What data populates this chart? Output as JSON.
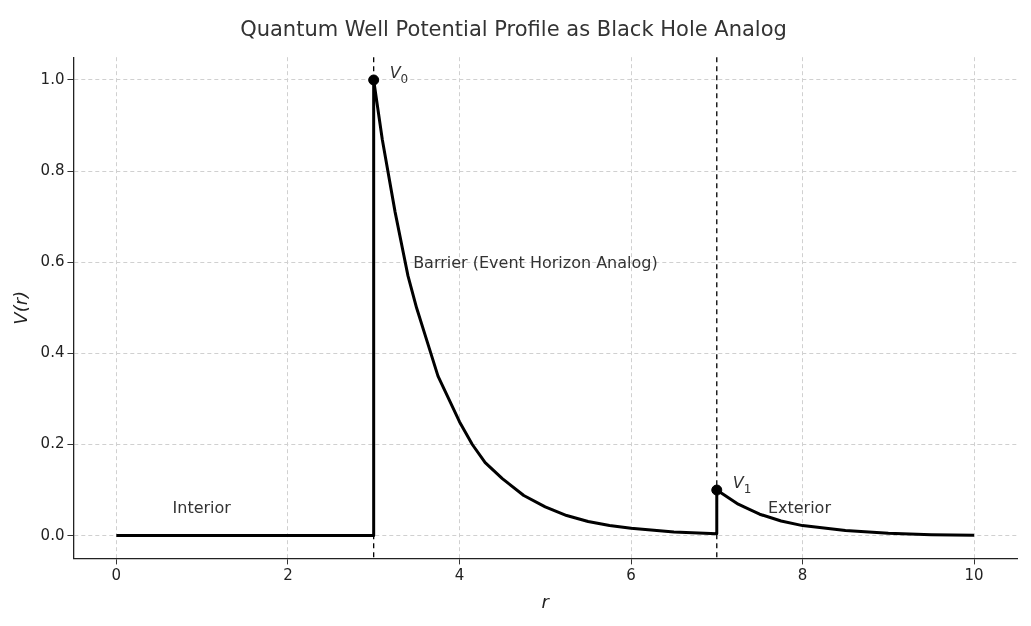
{
  "chart_data": {
    "type": "line",
    "title": "Quantum Well Potential Profile as Black Hole Analog",
    "xlabel": "r",
    "ylabel": "V(r)",
    "xlim": [
      -0.5,
      10.5
    ],
    "ylim": [
      -0.05,
      1.05
    ],
    "xticks": [
      0,
      2,
      4,
      6,
      8,
      10
    ],
    "yticks": [
      {
        "value": 0,
        "label": "0.0"
      },
      {
        "value": 0.2,
        "label": "0.2"
      },
      {
        "value": 0.4,
        "label": "0.4"
      },
      {
        "value": 0.6,
        "label": "0.6"
      },
      {
        "value": 0.8,
        "label": "0.8"
      },
      {
        "value": 1,
        "label": "1.0"
      }
    ],
    "grid": true,
    "legend": false,
    "series": [
      {
        "type": "line",
        "color": "#000000",
        "marker": "none",
        "x": [
          0,
          1,
          2,
          3,
          3,
          3.1,
          3.25,
          3.4,
          3.5,
          3.6,
          3.75,
          3.9,
          4,
          4.15,
          4.3,
          4.5,
          4.75,
          5,
          5.25,
          5.5,
          5.75,
          6,
          6.5,
          7,
          7,
          7.25,
          7.5,
          7.75,
          8,
          8.5,
          9,
          9.5,
          10
        ],
        "values": [
          0,
          0,
          0,
          0,
          1,
          0.87,
          0.71,
          0.57,
          0.5,
          0.44,
          0.35,
          0.29,
          0.25,
          0.2,
          0.16,
          0.125,
          0.088,
          0.063,
          0.044,
          0.031,
          0.022,
          0.016,
          0.008,
          0.004,
          0.1,
          0.069,
          0.047,
          0.032,
          0.022,
          0.011,
          0.005,
          0.002,
          0.001
        ]
      },
      {
        "type": "scatter",
        "color": "#000000",
        "marker": "circle",
        "x": [
          3,
          7
        ],
        "values": [
          1,
          0.1
        ]
      }
    ],
    "ref_lines": [
      {
        "axis": "x",
        "value": 3,
        "color": "#000000",
        "line_style": "dashed"
      },
      {
        "axis": "x",
        "value": 7,
        "color": "#000000",
        "line_style": "dashed"
      }
    ],
    "annotations": [
      {
        "text": "V$_{0}$",
        "x": 3,
        "y": 1
      },
      {
        "text": "V$_{1}$",
        "x": 7,
        "y": 0.1
      },
      "Interior",
      "Barrier (Event Horizon Analog)",
      "Exterior"
    ]
  }
}
